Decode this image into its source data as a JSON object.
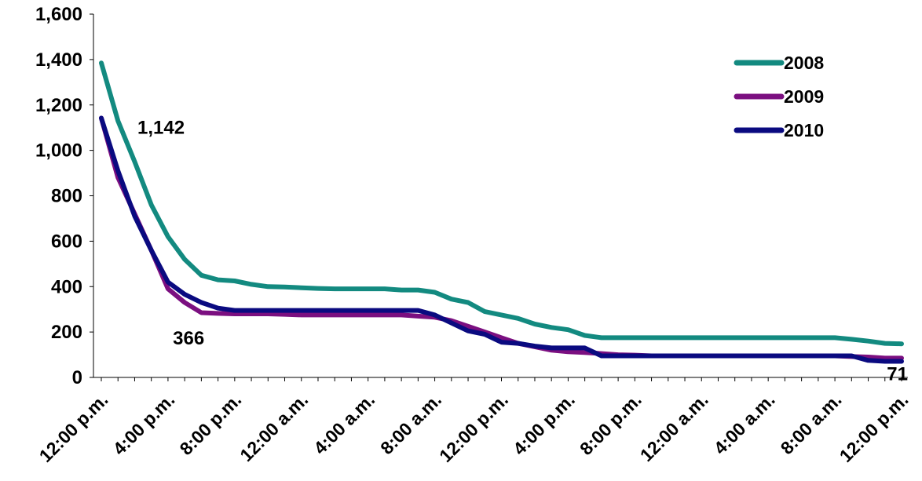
{
  "chart_data": {
    "type": "line",
    "title": "",
    "xlabel": "",
    "ylabel": "",
    "ylim": [
      0,
      1600
    ],
    "yticks": [
      0,
      200,
      400,
      600,
      800,
      1000,
      1200,
      1400,
      1600
    ],
    "ytick_labels": [
      "0",
      "200",
      "400",
      "600",
      "800",
      "1,000",
      "1,200",
      "1,400",
      "1,600"
    ],
    "x_hours": [
      0,
      1,
      2,
      3,
      4,
      5,
      6,
      7,
      8,
      9,
      10,
      11,
      12,
      13,
      14,
      15,
      16,
      17,
      18,
      19,
      20,
      21,
      22,
      23,
      24,
      25,
      26,
      27,
      28,
      29,
      30,
      31,
      32,
      33,
      34,
      35,
      36,
      37,
      38,
      39,
      40,
      41,
      42,
      43,
      44,
      45,
      46,
      47,
      48
    ],
    "xtick_hours": [
      0,
      4,
      8,
      12,
      16,
      20,
      24,
      28,
      32,
      36,
      40,
      44,
      48
    ],
    "xtick_labels": [
      "12:00 p.m.",
      "4:00 p.m.",
      "8:00 p.m.",
      "12:00 a.m.",
      "4:00 a.m.",
      "8:00 a.m.",
      "12:00 p.m.",
      "4:00 p.m.",
      "8:00 p.m.",
      "12:00 a.m.",
      "4:00 a.m.",
      "8:00 a.m.",
      "12:00 p.m."
    ],
    "grid": false,
    "legend_position": "top-right",
    "series": [
      {
        "name": "2008",
        "color": "#138a80",
        "values": [
          1385,
          1130,
          950,
          760,
          620,
          520,
          450,
          430,
          425,
          410,
          400,
          398,
          395,
          392,
          390,
          390,
          390,
          390,
          385,
          385,
          375,
          345,
          330,
          290,
          275,
          260,
          235,
          220,
          210,
          185,
          175,
          175,
          175,
          175,
          175,
          175,
          175,
          175,
          175,
          175,
          175,
          175,
          175,
          175,
          175,
          168,
          160,
          150,
          148
        ]
      },
      {
        "name": "2009",
        "color": "#7b0f80",
        "values": [
          1142,
          880,
          720,
          560,
          390,
          330,
          285,
          282,
          280,
          280,
          280,
          278,
          275,
          275,
          275,
          275,
          275,
          275,
          275,
          270,
          265,
          250,
          225,
          200,
          175,
          150,
          135,
          120,
          113,
          110,
          105,
          100,
          98,
          95,
          95,
          95,
          95,
          95,
          95,
          95,
          95,
          95,
          95,
          95,
          95,
          92,
          90,
          85,
          85
        ]
      },
      {
        "name": "2010",
        "color": "#0a0a80",
        "values": [
          1142,
          910,
          710,
          560,
          420,
          366,
          330,
          305,
          295,
          295,
          295,
          295,
          295,
          295,
          295,
          295,
          295,
          295,
          295,
          295,
          275,
          240,
          205,
          190,
          155,
          150,
          138,
          130,
          130,
          130,
          95,
          95,
          95,
          95,
          95,
          95,
          95,
          95,
          95,
          95,
          95,
          95,
          95,
          95,
          95,
          95,
          75,
          71,
          71
        ]
      }
    ],
    "annotations": [
      {
        "text": "1,142",
        "series": "2010",
        "hour": 0
      },
      {
        "text": "366",
        "series": "2010",
        "hour": 5
      },
      {
        "text": "71",
        "series": "2010",
        "hour": 48
      }
    ]
  }
}
